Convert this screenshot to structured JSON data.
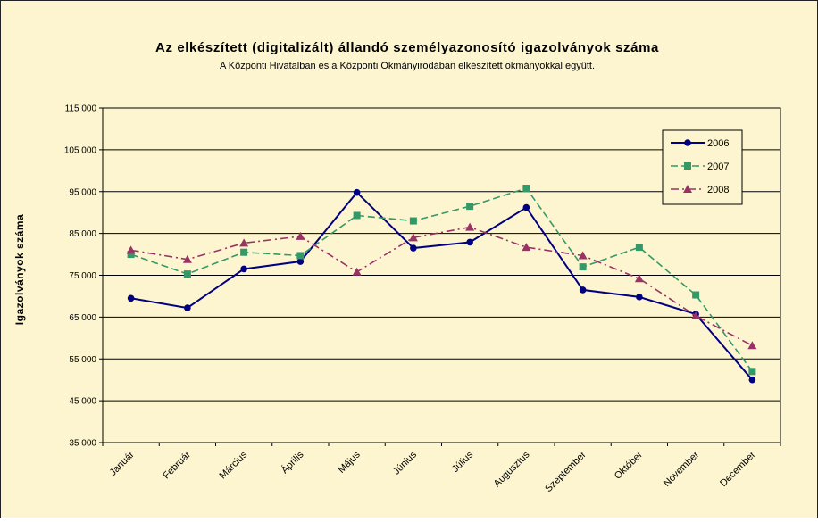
{
  "chart_data": {
    "type": "line",
    "title": "Az elkészített (digitalizált) állandó személyazonosító igazolványok száma",
    "subtitle": "A Központi Hivatalban és a Központi Okmányirodában elkészített okmányokkal együtt.",
    "ylabel": "Igazolványok száma",
    "xlabel": "",
    "ylim": [
      35000,
      115000
    ],
    "ytick_values": [
      35000,
      45000,
      55000,
      65000,
      75000,
      85000,
      95000,
      105000,
      115000
    ],
    "ytick_labels": [
      "35 000",
      "45 000",
      "55 000",
      "65 000",
      "75 000",
      "85 000",
      "95 000",
      "105 000",
      "115 000"
    ],
    "categories": [
      "Január",
      "Február",
      "Március",
      "Április",
      "Május",
      "Június",
      "Július",
      "Augusztus",
      "Szeptember",
      "Október",
      "November",
      "December"
    ],
    "grid": true,
    "legend_position": "top-right",
    "series": [
      {
        "name": "2006",
        "color": "#000080",
        "marker": "circle",
        "dash": "solid",
        "values": [
          69500,
          67200,
          76500,
          78300,
          94800,
          81500,
          82900,
          91200,
          71500,
          69800,
          65700,
          50000
        ]
      },
      {
        "name": "2007",
        "color": "#339966",
        "marker": "square",
        "dash": "dashed",
        "values": [
          80000,
          75300,
          80500,
          79700,
          89300,
          88000,
          91500,
          95800,
          77000,
          81700,
          70300,
          52000
        ]
      },
      {
        "name": "2008",
        "color": "#993366",
        "marker": "triangle",
        "dash": "dashdot",
        "values": [
          81000,
          78800,
          82700,
          84300,
          75800,
          84000,
          86500,
          81700,
          79700,
          74200,
          65300,
          58200
        ]
      }
    ]
  }
}
